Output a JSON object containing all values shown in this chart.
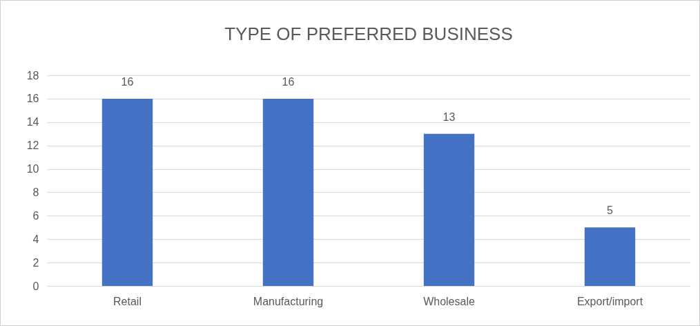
{
  "chart_data": {
    "type": "bar",
    "title": "TYPE OF PREFERRED BUSINESS",
    "categories": [
      "Retail",
      "Manufacturing",
      "Wholesale",
      "Export/import"
    ],
    "values": [
      16,
      16,
      13,
      5
    ],
    "color": "#4472c4",
    "ylim": [
      0,
      18
    ],
    "yticks": [
      0,
      2,
      4,
      6,
      8,
      10,
      12,
      14,
      16,
      18
    ],
    "grid": "y",
    "data_labels": true
  }
}
